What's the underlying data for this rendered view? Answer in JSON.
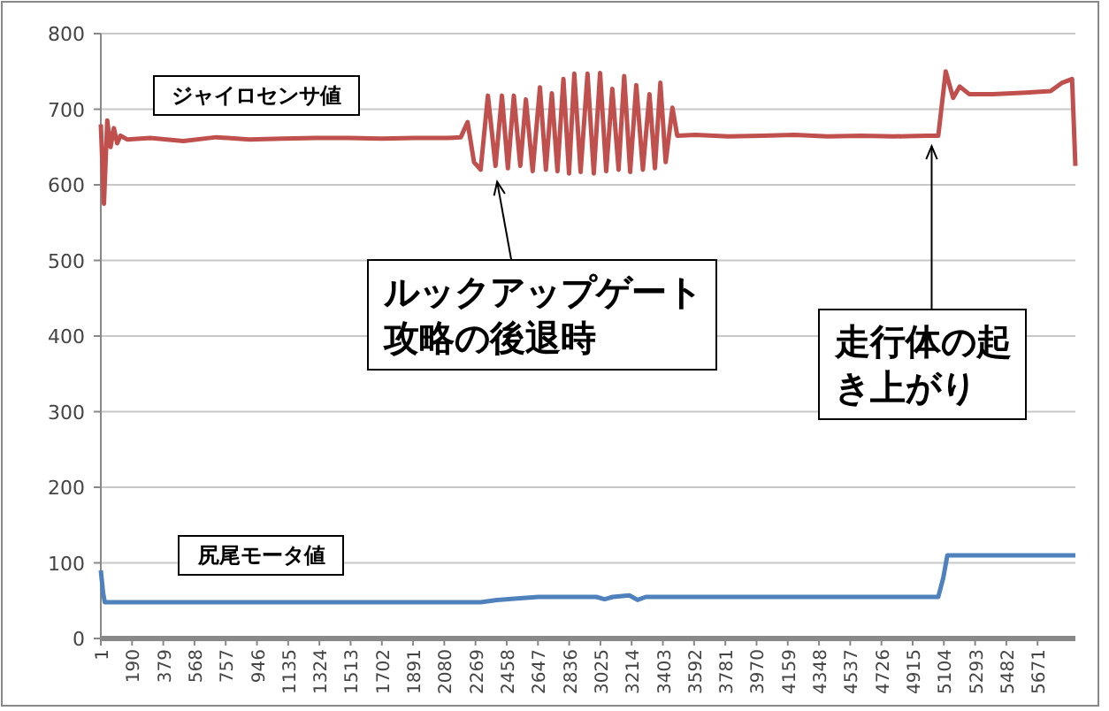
{
  "chart_data": {
    "type": "line",
    "grid": "y",
    "marker": "none",
    "line_style": "solid",
    "xlim": [
      1,
      5900
    ],
    "ylim": [
      0,
      800
    ],
    "xticks": [
      1,
      190,
      379,
      568,
      757,
      946,
      1135,
      1324,
      1513,
      1702,
      1891,
      2080,
      2269,
      2458,
      2647,
      2836,
      3025,
      3214,
      3403,
      3592,
      3781,
      3970,
      4159,
      4348,
      4537,
      4726,
      4915,
      5104,
      5293,
      5482,
      5671
    ],
    "yticks": [
      0,
      100,
      200,
      300,
      400,
      500,
      600,
      700,
      800
    ],
    "series": [
      {
        "name": "ジャイロセンサ値",
        "color": "#c0504d",
        "x": [
          1,
          20,
          40,
          60,
          80,
          100,
          120,
          160,
          300,
          500,
          700,
          900,
          1100,
          1300,
          1500,
          1700,
          1900,
          2100,
          2180,
          2221,
          2260,
          2300,
          2344,
          2390,
          2429,
          2465,
          2501,
          2540,
          2574,
          2615,
          2659,
          2695,
          2731,
          2765,
          2801,
          2835,
          2867,
          2905,
          2947,
          2985,
          3023,
          3060,
          3097,
          3135,
          3169,
          3205,
          3242,
          3282,
          3322,
          3355,
          3388,
          3420,
          3461,
          3490,
          3600,
          3800,
          4000,
          4200,
          4400,
          4600,
          4800,
          5000,
          5070,
          5115,
          5160,
          5200,
          5257,
          5400,
          5600,
          5750,
          5820,
          5880,
          5900
        ],
        "values": [
          680,
          575,
          685,
          650,
          675,
          655,
          665,
          660,
          662,
          658,
          663,
          660,
          661,
          662,
          662,
          661,
          662,
          662,
          663,
          683,
          630,
          620,
          718,
          625,
          718,
          622,
          718,
          625,
          713,
          618,
          729,
          620,
          721,
          618,
          740,
          615,
          747,
          617,
          747,
          615,
          748,
          618,
          727,
          620,
          744,
          617,
          732,
          620,
          720,
          622,
          735,
          630,
          702,
          665,
          666,
          664,
          665,
          666,
          664,
          665,
          664,
          665,
          665,
          750,
          715,
          730,
          720,
          720,
          722,
          724,
          735,
          740,
          625
        ]
      },
      {
        "name": "尻尾モータ値",
        "color": "#4f81bd",
        "x": [
          1,
          15,
          25,
          300,
          1000,
          2000,
          2300,
          2400,
          2520,
          2650,
          3000,
          3050,
          3100,
          3200,
          3250,
          3300,
          4000,
          5070,
          5100,
          5125,
          5500,
          5900
        ],
        "values": [
          90,
          60,
          48,
          48,
          48,
          48,
          48,
          51,
          53,
          55,
          55,
          52,
          55,
          57,
          51,
          55,
          55,
          55,
          80,
          110,
          110,
          110
        ]
      }
    ],
    "annotations": [
      {
        "text": "ルックアップゲート攻略の後退時",
        "x": 2400,
        "y": 618
      },
      {
        "text": "走行体の起き上がり",
        "x": 5030,
        "y": 665
      }
    ]
  }
}
